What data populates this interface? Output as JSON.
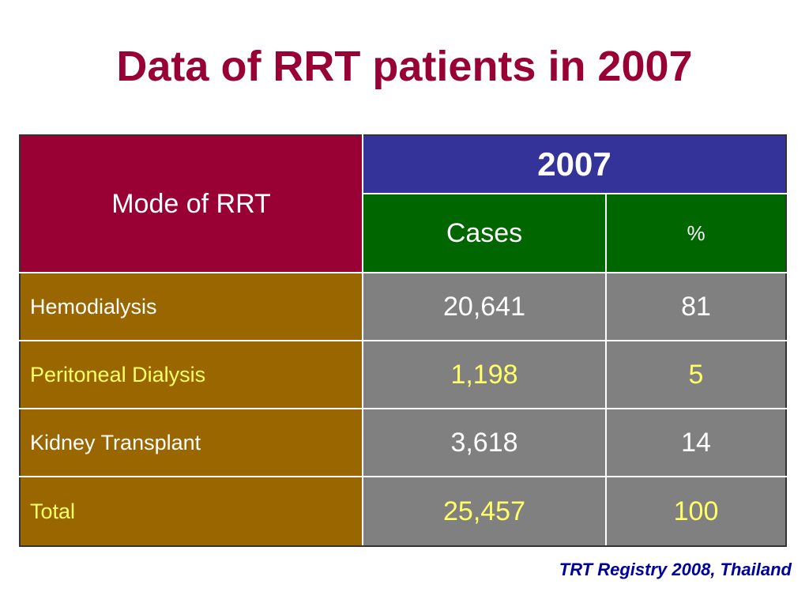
{
  "slide": {
    "title": "Data of RRT patients in 2007",
    "source": "TRT Registry 2008, Thailand"
  },
  "table": {
    "mode_header": "Mode of RRT",
    "year_header": "2007",
    "cases_header": "Cases",
    "percent_header": "%",
    "rows": [
      {
        "label": "Hemodialysis",
        "cases": "20,641",
        "percent": "81",
        "text_color": "#ffffff"
      },
      {
        "label": "Peritoneal Dialysis",
        "cases": "1,198",
        "percent": "5",
        "text_color": "#ffff66"
      },
      {
        "label": "Kidney Transplant",
        "cases": "3,618",
        "percent": "14",
        "text_color": "#ffffff"
      },
      {
        "label": "Total",
        "cases": "25,457",
        "percent": "100",
        "text_color": "#ffff66"
      }
    ]
  },
  "colors": {
    "title": "#990033",
    "mode_header_bg": "#990033",
    "year_header_bg": "#333399",
    "sub_header_bg": "#006600",
    "label_bg": "#996600",
    "value_bg": "#808080",
    "source_text": "#000099"
  }
}
